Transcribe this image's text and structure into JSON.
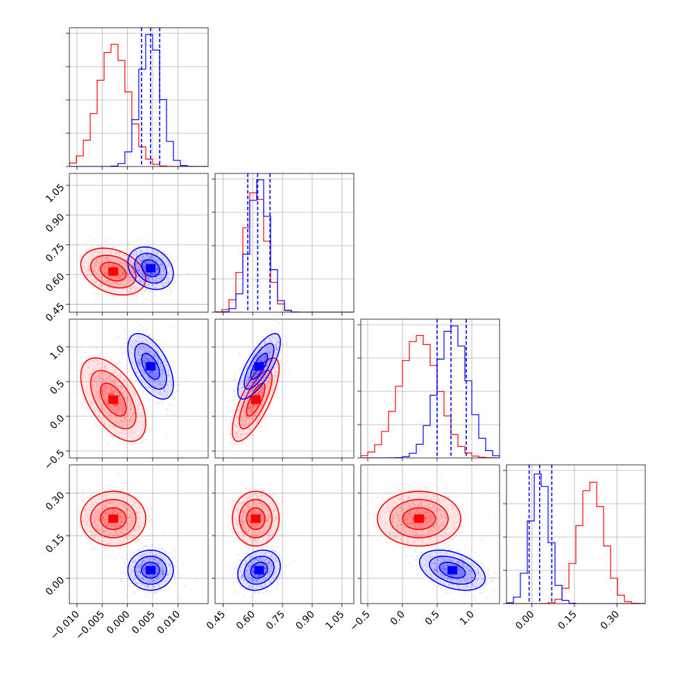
{
  "chart_data": {
    "type": "corner",
    "grid": true,
    "parameters": [
      {
        "ticks": [
          -0.01,
          -0.005,
          0.0,
          0.005,
          0.01
        ],
        "tick_labels": [
          "−0.010",
          "−0.005",
          "0.000",
          "0.005",
          "0.010"
        ],
        "range": [
          -0.0115,
          0.016
        ]
      },
      {
        "ticks": [
          0.45,
          0.6,
          0.75,
          0.9,
          1.05
        ],
        "tick_labels": [
          "0.45",
          "0.60",
          "0.75",
          "0.90",
          "1.05"
        ],
        "range": [
          0.41,
          1.11
        ]
      },
      {
        "ticks": [
          -0.5,
          0.0,
          0.5,
          1.0
        ],
        "tick_labels": [
          "−0.5",
          "0.0",
          "0.5",
          "1.0"
        ],
        "range": [
          -0.6,
          1.4
        ]
      },
      {
        "ticks": [
          0.0,
          0.15,
          0.3
        ],
        "tick_labels": [
          "0.00",
          "0.15",
          "0.30"
        ],
        "range": [
          -0.09,
          0.4
        ]
      }
    ],
    "series": [
      {
        "color": "#ff0000",
        "means": [
          -0.0028,
          0.615,
          0.24,
          0.21
        ],
        "sds": [
          0.003,
          0.055,
          0.28,
          0.045
        ],
        "correlations": {
          "0_1": -0.3,
          "0_2": -0.55,
          "1_2": 0.75,
          "0_3": 0.0,
          "1_3": 0.0,
          "2_3": 0.0
        },
        "peak": 0.92
      },
      {
        "color": "#0000ff",
        "means": [
          0.0046,
          0.632,
          0.72,
          0.028
        ],
        "sds": [
          0.0021,
          0.05,
          0.22,
          0.033
        ],
        "correlations": {
          "0_1": -0.25,
          "0_2": -0.55,
          "1_2": 0.75,
          "0_3": 0.0,
          "1_3": 0.2,
          "2_3": -0.4
        },
        "peak": 1.0,
        "quantiles": [
          [
            0.0028,
            0.0046,
            0.0064
          ],
          [
            0.575,
            0.625,
            0.687
          ],
          [
            0.5,
            0.7,
            0.92
          ],
          [
            -0.01,
            0.027,
            0.07
          ]
        ]
      }
    ]
  }
}
